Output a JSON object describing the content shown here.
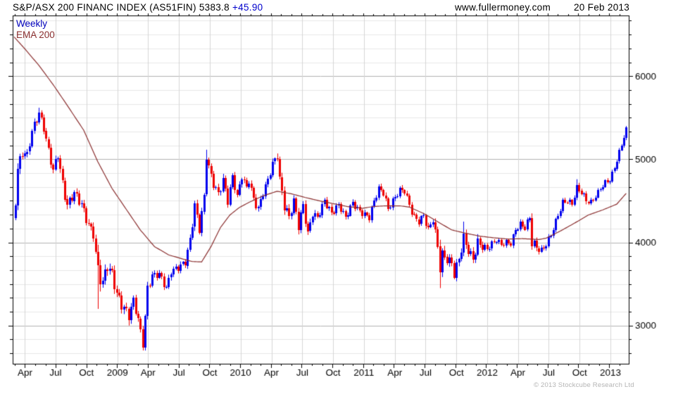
{
  "header": {
    "title": "S&P/ASX 200 FINANC INDEX (AS51FIN) 5383.8",
    "change": " +45.90",
    "website": "www.fullermoney.com",
    "date": "20 Feb 2013"
  },
  "legend": {
    "timeframe": "Weekly",
    "overlay": "EMA 200"
  },
  "footer": {
    "copyright": "© 2013 Stockcube Research Ltd"
  },
  "colors": {
    "up_candle": "#0000ee",
    "down_candle": "#ee0000",
    "ema_line": "#8b3030",
    "grid_minor": "#e7e7e7",
    "grid_vertical": "#d6d6d6",
    "grid_major": "#b2b2b2",
    "axis": "#000000",
    "change_text": "#0000cc",
    "legend_weekly_text": "#0000bb",
    "copyright_text": "#b4b4b4"
  },
  "chart_data": {
    "type": "candlestick",
    "timeframe": "weekly",
    "title": "S&P/ASX 200 FINANC INDEX (AS51FIN)",
    "last_close": 5383.8,
    "change_on_week": 45.9,
    "x_axis": {
      "labels": [
        "Apr",
        "Jul",
        "Oct",
        "2009",
        "Apr",
        "Jul",
        "Oct",
        "2010",
        "Apr",
        "Jul",
        "Oct",
        "2011",
        "Apr",
        "Jul",
        "Oct",
        "2012",
        "Apr",
        "Jul",
        "Oct",
        "2013"
      ],
      "label_weeks": [
        6.1,
        19.1,
        32.2,
        45.3,
        58.3,
        71.4,
        84.5,
        97.5,
        110.6,
        123.7,
        136.7,
        149.8,
        162.9,
        175.9,
        189.0,
        202.1,
        215.1,
        228.2,
        241.3,
        254.3
      ],
      "weeks_per_month": 4.345,
      "first_week": 2,
      "last_week": 261
    },
    "y_axis": {
      "major_ticks": [
        6000,
        5000,
        4000,
        3000
      ],
      "minor_step": 166.667,
      "price_min": 2540,
      "price_max": 6730,
      "side": "right"
    },
    "price_close_anchors_week_close_range": [
      [
        2,
        4500,
        300
      ],
      [
        3,
        4880,
        350
      ],
      [
        5,
        5080,
        250
      ],
      [
        7,
        5050,
        220
      ],
      [
        9,
        5340,
        220
      ],
      [
        11,
        5480,
        200
      ],
      [
        12,
        5560,
        200
      ],
      [
        14,
        5380,
        200
      ],
      [
        16,
        5100,
        220
      ],
      [
        18,
        4870,
        250
      ],
      [
        20,
        5050,
        200
      ],
      [
        22,
        4700,
        250
      ],
      [
        24,
        4440,
        250
      ],
      [
        27,
        4600,
        220
      ],
      [
        30,
        4460,
        250
      ],
      [
        32,
        4280,
        220
      ],
      [
        34,
        4150,
        250
      ],
      [
        35,
        4100,
        250
      ],
      [
        37,
        3640,
        500
      ],
      [
        39,
        3520,
        350
      ],
      [
        41,
        3720,
        300
      ],
      [
        43,
        3620,
        300
      ],
      [
        45,
        3380,
        300
      ],
      [
        47,
        3250,
        280
      ],
      [
        50,
        3120,
        250
      ],
      [
        52,
        3300,
        220
      ],
      [
        54,
        3070,
        220
      ],
      [
        56,
        2780,
        200
      ],
      [
        57,
        3100,
        250
      ],
      [
        58,
        3450,
        220
      ],
      [
        60,
        3600,
        200
      ],
      [
        63,
        3620,
        180
      ],
      [
        66,
        3450,
        200
      ],
      [
        68,
        3650,
        180
      ],
      [
        71,
        3700,
        180
      ],
      [
        74,
        3760,
        180
      ],
      [
        76,
        4030,
        220
      ],
      [
        78,
        4445,
        250
      ],
      [
        80,
        4160,
        220
      ],
      [
        82,
        4550,
        200
      ],
      [
        83,
        5040,
        220
      ],
      [
        84,
        4900,
        200
      ],
      [
        86,
        4700,
        200
      ],
      [
        88,
        4580,
        220
      ],
      [
        90,
        4750,
        250
      ],
      [
        92,
        4500,
        200
      ],
      [
        94,
        4790,
        180
      ],
      [
        96,
        4550,
        200
      ],
      [
        98,
        4800,
        200
      ],
      [
        100,
        4650,
        200
      ],
      [
        101,
        4750,
        180
      ],
      [
        103,
        4520,
        200
      ],
      [
        105,
        4400,
        220
      ],
      [
        107,
        4600,
        200
      ],
      [
        109,
        4750,
        180
      ],
      [
        111,
        4950,
        180
      ],
      [
        113,
        5040,
        180
      ],
      [
        114,
        4750,
        280
      ],
      [
        116,
        4450,
        300
      ],
      [
        118,
        4300,
        250
      ],
      [
        120,
        4500,
        200
      ],
      [
        122,
        4200,
        250
      ],
      [
        124,
        4450,
        200
      ],
      [
        126,
        4100,
        250
      ],
      [
        128,
        4350,
        200
      ],
      [
        130,
        4300,
        180
      ],
      [
        133,
        4500,
        180
      ],
      [
        136,
        4350,
        180
      ],
      [
        139,
        4450,
        160
      ],
      [
        142,
        4300,
        180
      ],
      [
        145,
        4480,
        160
      ],
      [
        147,
        4400,
        160
      ],
      [
        149,
        4350,
        160
      ],
      [
        152,
        4300,
        160
      ],
      [
        154,
        4500,
        160
      ],
      [
        156,
        4650,
        160
      ],
      [
        158,
        4600,
        160
      ],
      [
        160,
        4400,
        180
      ],
      [
        162,
        4500,
        160
      ],
      [
        165,
        4630,
        160
      ],
      [
        167,
        4620,
        160
      ],
      [
        169,
        4450,
        180
      ],
      [
        171,
        4300,
        180
      ],
      [
        173,
        4250,
        160
      ],
      [
        175,
        4320,
        160
      ],
      [
        177,
        4150,
        200
      ],
      [
        179,
        4280,
        180
      ],
      [
        181,
        3950,
        300
      ],
      [
        182,
        3720,
        400
      ],
      [
        183,
        3850,
        300
      ],
      [
        185,
        3800,
        250
      ],
      [
        187,
        3750,
        220
      ],
      [
        188,
        3620,
        250
      ],
      [
        190,
        3800,
        220
      ],
      [
        192,
        4050,
        300
      ],
      [
        194,
        3900,
        220
      ],
      [
        196,
        3800,
        250
      ],
      [
        198,
        4000,
        250
      ],
      [
        200,
        3950,
        200
      ],
      [
        202,
        3920,
        150
      ],
      [
        204,
        3980,
        150
      ],
      [
        206,
        4030,
        140
      ],
      [
        208,
        3970,
        140
      ],
      [
        210,
        4000,
        130
      ],
      [
        212,
        3980,
        130
      ],
      [
        214,
        4150,
        150
      ],
      [
        216,
        4220,
        150
      ],
      [
        218,
        4180,
        150
      ],
      [
        220,
        4300,
        150
      ],
      [
        221,
        4000,
        280
      ],
      [
        223,
        3940,
        200
      ],
      [
        225,
        3900,
        180
      ],
      [
        227,
        3980,
        160
      ],
      [
        229,
        4090,
        160
      ],
      [
        231,
        4250,
        150
      ],
      [
        234,
        4480,
        150
      ],
      [
        236,
        4500,
        130
      ],
      [
        238,
        4460,
        140
      ],
      [
        240,
        4660,
        150
      ],
      [
        242,
        4600,
        160
      ],
      [
        244,
        4500,
        160
      ],
      [
        246,
        4480,
        140
      ],
      [
        248,
        4560,
        130
      ],
      [
        250,
        4650,
        120
      ],
      [
        252,
        4720,
        130
      ],
      [
        254,
        4750,
        120
      ],
      [
        256,
        4900,
        130
      ],
      [
        258,
        5080,
        140
      ],
      [
        259,
        5180,
        150
      ],
      [
        260,
        5280,
        150
      ],
      [
        261,
        5383.8,
        160
      ]
    ],
    "wick_overrides": [
      {
        "week": 12,
        "high": 5620
      },
      {
        "week": 37,
        "low": 3200
      },
      {
        "week": 50,
        "low": 3000
      },
      {
        "week": 56,
        "low": 2700
      },
      {
        "week": 83,
        "high": 5115
      },
      {
        "week": 113,
        "high": 5070
      },
      {
        "week": 182,
        "low": 3450
      },
      {
        "week": 188,
        "low": 3570
      },
      {
        "week": 192,
        "high": 4250
      },
      {
        "week": 240,
        "high": 4760
      },
      {
        "week": 261,
        "high": 5400
      }
    ],
    "ema200_anchors_week_value": [
      [
        0,
        6520
      ],
      [
        6,
        6330
      ],
      [
        12,
        6130
      ],
      [
        18,
        5900
      ],
      [
        24,
        5650
      ],
      [
        31,
        5350
      ],
      [
        37,
        4970
      ],
      [
        43,
        4650
      ],
      [
        49,
        4400
      ],
      [
        55,
        4150
      ],
      [
        61,
        3950
      ],
      [
        67,
        3850
      ],
      [
        73,
        3800
      ],
      [
        77,
        3770
      ],
      [
        81,
        3765
      ],
      [
        85,
        3950
      ],
      [
        89,
        4180
      ],
      [
        93,
        4330
      ],
      [
        97,
        4420
      ],
      [
        101,
        4480
      ],
      [
        107,
        4560
      ],
      [
        113,
        4615
      ],
      [
        119,
        4585
      ],
      [
        125,
        4540
      ],
      [
        131,
        4500
      ],
      [
        137,
        4465
      ],
      [
        143,
        4430
      ],
      [
        149,
        4410
      ],
      [
        154,
        4432
      ],
      [
        159,
        4440
      ],
      [
        165,
        4440
      ],
      [
        169,
        4425
      ],
      [
        175,
        4350
      ],
      [
        181,
        4250
      ],
      [
        187,
        4150
      ],
      [
        193,
        4110
      ],
      [
        199,
        4075
      ],
      [
        205,
        4055
      ],
      [
        211,
        4040
      ],
      [
        217,
        4045
      ],
      [
        224,
        4035
      ],
      [
        227,
        4050
      ],
      [
        233,
        4135
      ],
      [
        239,
        4230
      ],
      [
        245,
        4330
      ],
      [
        251,
        4390
      ],
      [
        257,
        4460
      ],
      [
        261,
        4590
      ]
    ]
  }
}
